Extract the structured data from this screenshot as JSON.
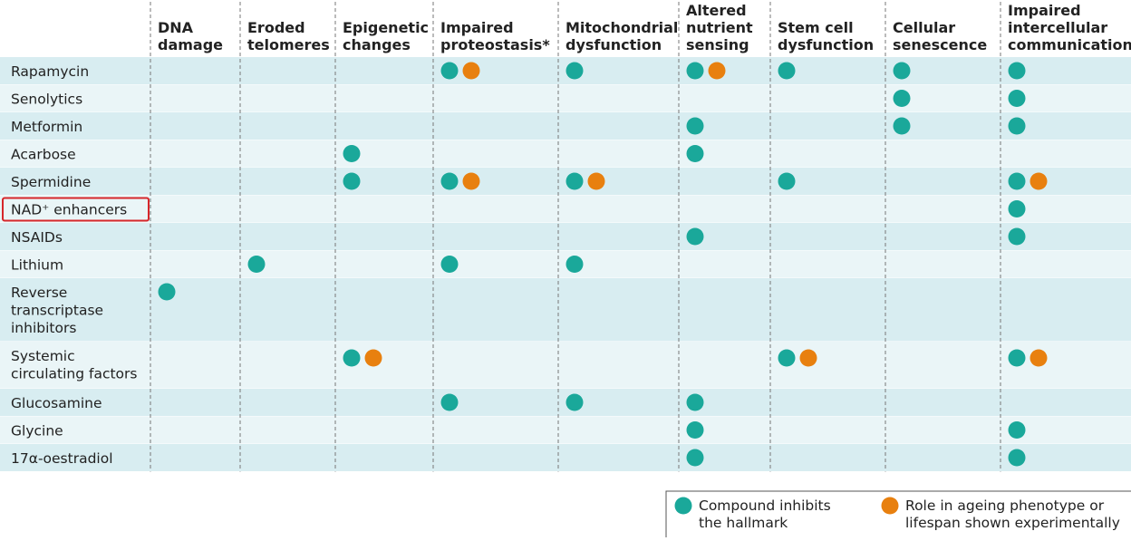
{
  "table": {
    "columns": [
      [
        "DNA",
        "damage"
      ],
      [
        "Eroded",
        "telomeres"
      ],
      [
        "Epigenetic",
        "changes"
      ],
      [
        "Impaired",
        "proteostasis*"
      ],
      [
        "Mitochondrial",
        "dysfunction"
      ],
      [
        "Altered",
        "nutrient",
        "sensing"
      ],
      [
        "Stem cell",
        "dysfunction"
      ],
      [
        "Cellular",
        "senescence"
      ],
      [
        "Impaired",
        "intercellular",
        "communication"
      ]
    ],
    "rows": [
      {
        "label": [
          "Rapamycin"
        ],
        "cells": [
          [],
          [],
          [],
          [
            0,
            1
          ],
          [
            0
          ],
          [
            0,
            1
          ],
          [
            0
          ],
          [
            0
          ],
          [
            0
          ]
        ]
      },
      {
        "label": [
          "Senolytics"
        ],
        "cells": [
          [],
          [],
          [],
          [],
          [],
          [],
          [],
          [
            0
          ],
          [
            0
          ]
        ]
      },
      {
        "label": [
          "Metformin"
        ],
        "cells": [
          [],
          [],
          [],
          [],
          [],
          [
            0
          ],
          [],
          [
            0
          ],
          [
            0
          ]
        ]
      },
      {
        "label": [
          "Acarbose"
        ],
        "cells": [
          [],
          [],
          [
            0
          ],
          [],
          [],
          [
            0
          ],
          [],
          [],
          []
        ]
      },
      {
        "label": [
          "Spermidine"
        ],
        "cells": [
          [],
          [],
          [
            0
          ],
          [
            0,
            1
          ],
          [
            0,
            1
          ],
          [],
          [
            0
          ],
          [],
          [
            0,
            1
          ]
        ]
      },
      {
        "label": [
          "NAD⁺ enhancers"
        ],
        "highlight": true,
        "cells": [
          [],
          [],
          [],
          [],
          [],
          [],
          [],
          [],
          [
            0
          ]
        ]
      },
      {
        "label": [
          "NSAIDs"
        ],
        "cells": [
          [],
          [],
          [],
          [],
          [],
          [
            0
          ],
          [],
          [],
          [
            0
          ]
        ]
      },
      {
        "label": [
          "Lithium"
        ],
        "cells": [
          [],
          [
            0
          ],
          [],
          [
            0
          ],
          [
            0
          ],
          [],
          [],
          [],
          []
        ]
      },
      {
        "label": [
          "Reverse",
          "transcriptase",
          "inhibitors"
        ],
        "cells": [
          [
            0
          ],
          [],
          [],
          [],
          [],
          [],
          [],
          [],
          []
        ]
      },
      {
        "label": [
          "Systemic",
          "circulating factors"
        ],
        "cells": [
          [],
          [],
          [
            0,
            1
          ],
          [],
          [],
          [],
          [
            0,
            1
          ],
          [],
          [
            0,
            1
          ]
        ]
      },
      {
        "label": [
          "Glucosamine"
        ],
        "cells": [
          [],
          [],
          [],
          [
            0
          ],
          [
            0
          ],
          [
            0
          ],
          [],
          [],
          []
        ]
      },
      {
        "label": [
          "Glycine"
        ],
        "cells": [
          [],
          [],
          [],
          [],
          [],
          [
            0
          ],
          [],
          [],
          [
            0
          ]
        ]
      },
      {
        "label": [
          "17α-oestradiol"
        ],
        "cells": [
          [],
          [],
          [],
          [],
          [],
          [
            0
          ],
          [],
          [],
          [
            0
          ]
        ]
      }
    ]
  },
  "legend": [
    {
      "label": [
        "Compound inhibits",
        "the hallmark"
      ],
      "color": "#1aa89a"
    },
    {
      "label": [
        "Role in ageing phenotype or",
        "lifespan shown experimentally"
      ],
      "color": "#e8800f"
    }
  ]
}
